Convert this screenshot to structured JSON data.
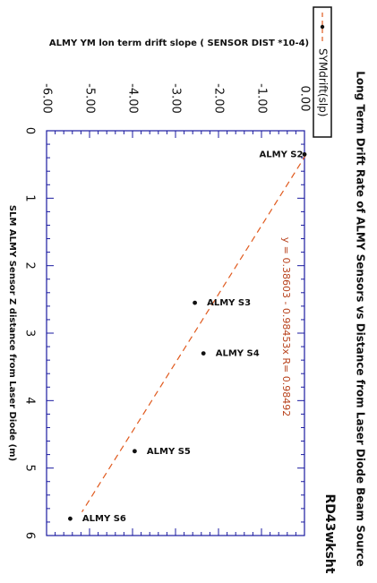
{
  "chart_data": {
    "type": "scatter",
    "title": "Long Term Drift Rate of ALMY Sensors vs Distance from Laser Diode Beam Source",
    "worksheet": "RD43wksht",
    "xlabel": "SLM ALMY Sensor Z distance from Laser Diode (m)",
    "ylabel": "ALMY YM lon term drift slope  ( SENSOR DIST *10-4)",
    "xlim": [
      0,
      6
    ],
    "ylim": [
      -6,
      0
    ],
    "x_ticks": [
      "0",
      "1",
      "2",
      "3",
      "4",
      "5",
      "6"
    ],
    "y_ticks": [
      "-6.00",
      "-5.00",
      "-4.00",
      "-3.00",
      "-2.00",
      "-1.00",
      "0.00"
    ],
    "grid": false,
    "legend": {
      "position": "top-right",
      "label": "SYMdrift(slp)"
    },
    "fit_label": "y = 0.38603 - 0.98453x  R= 0.98492",
    "fit": {
      "intercept": 0.38603,
      "slope": -0.98453,
      "x_range": [
        0.35,
        5.65
      ]
    },
    "series": [
      {
        "name": "SYMdrift(slp)",
        "points": [
          {
            "label": "ALMY S2",
            "x": 0.35,
            "y": 0.0
          },
          {
            "label": "ALMY S3",
            "x": 2.55,
            "y": -2.55
          },
          {
            "label": "ALMY S4",
            "x": 3.3,
            "y": -2.35
          },
          {
            "label": "ALMY S5",
            "x": 4.75,
            "y": -3.95
          },
          {
            "label": "ALMY S6",
            "x": 5.75,
            "y": -5.45
          }
        ]
      }
    ],
    "colors": {
      "fit_line": "#e05a1e",
      "fit_text": "#b8421c",
      "axis": "#1a1aa0",
      "marker": "#111111"
    }
  }
}
